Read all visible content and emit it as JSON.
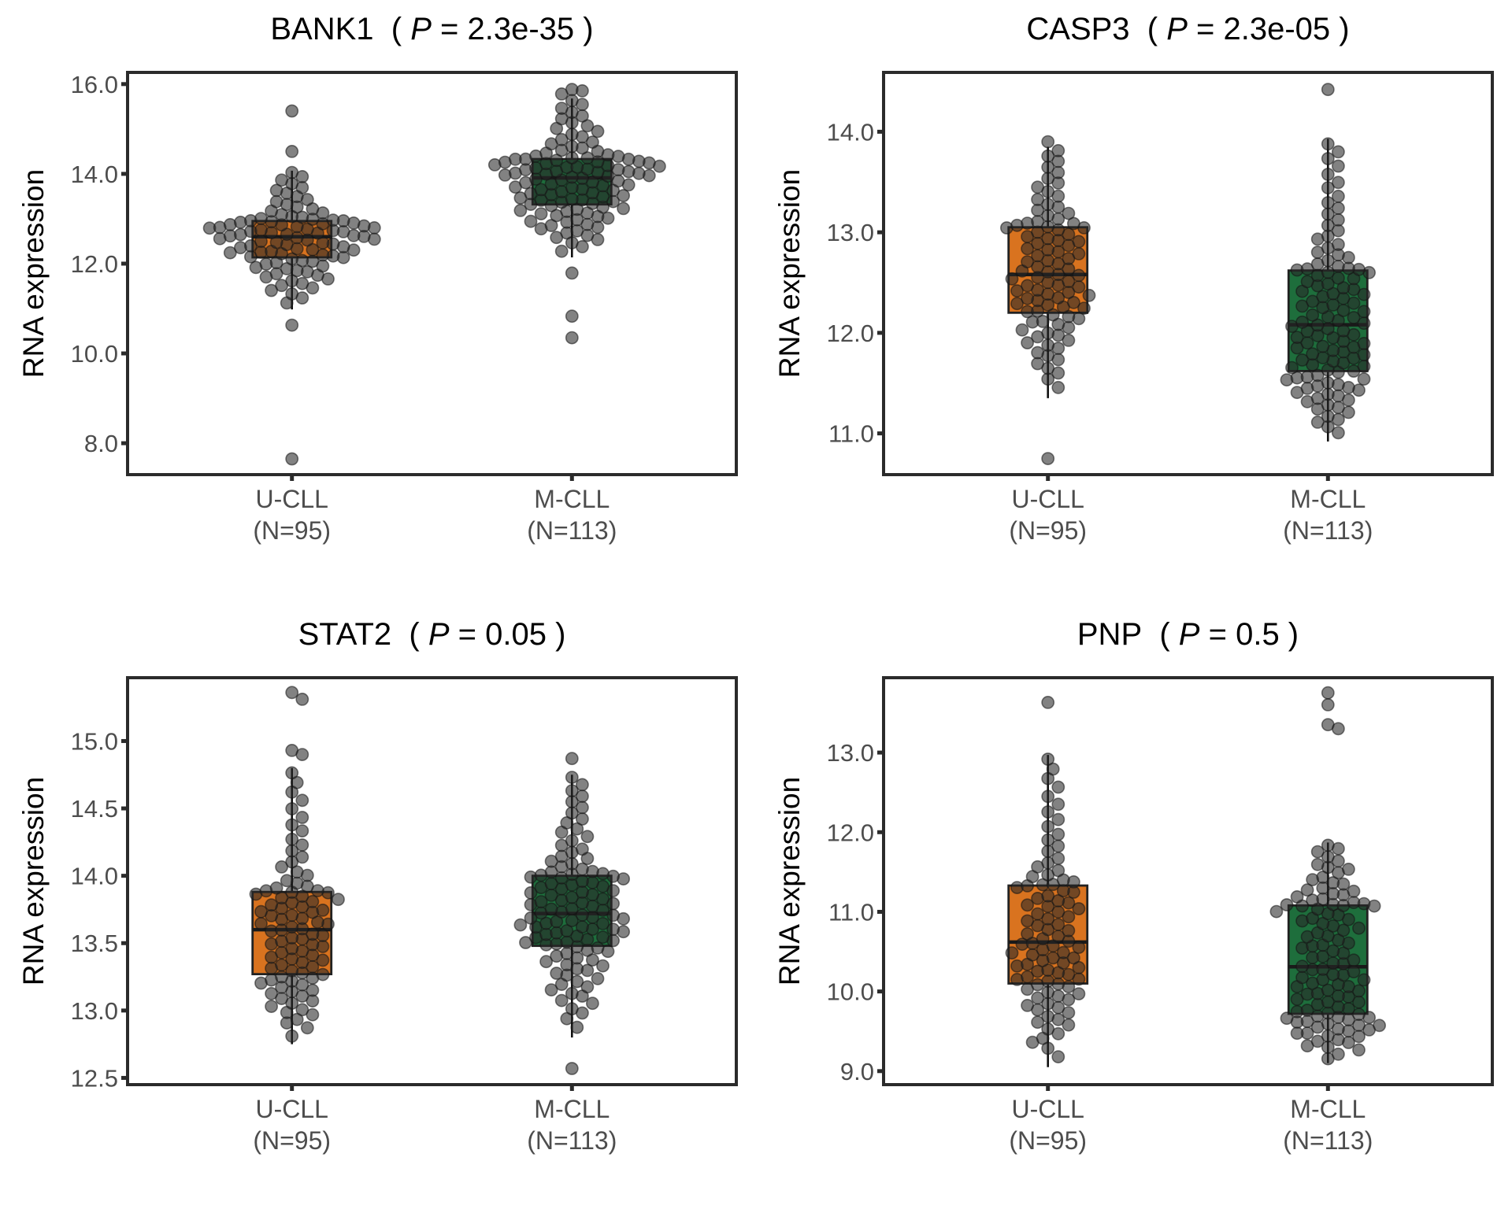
{
  "chart_data": [
    {
      "type": "box",
      "overlay": "beeswarm",
      "title": "BANK1",
      "p_label": "P",
      "p_value": "2.3e-35",
      "xlabel": "",
      "ylabel": "RNA expression",
      "ylim": [
        7.3,
        16.26
      ],
      "yticks": [
        8.0,
        10.0,
        12.0,
        14.0,
        16.0
      ],
      "ytick_labels": [
        "8.0",
        "10.0",
        "12.0",
        "14.0",
        "16.0"
      ],
      "grid": false,
      "categories": [
        {
          "name": "U-CLL",
          "n_label": "(N=95)",
          "n": 95,
          "color": "#d9731f",
          "q1": 12.14,
          "median": 12.6,
          "q3": 12.95,
          "whisker_low": 10.98,
          "whisker_high": 14.07,
          "outliers": [
            15.4,
            14.5,
            10.63,
            7.65
          ]
        },
        {
          "name": "M-CLL",
          "n_label": "(N=113)",
          "n": 113,
          "color": "#1e6e3c",
          "q1": 13.32,
          "median": 13.91,
          "q3": 14.33,
          "whisker_low": 12.14,
          "whisker_high": 15.68,
          "outliers": [
            15.88,
            15.85,
            15.78,
            11.79,
            10.83,
            10.35
          ]
        }
      ]
    },
    {
      "type": "box",
      "overlay": "beeswarm",
      "title": "CASP3",
      "p_label": "P",
      "p_value": "2.3e-05",
      "xlabel": "",
      "ylabel": "RNA expression",
      "ylim": [
        10.59,
        14.59
      ],
      "yticks": [
        11.0,
        12.0,
        13.0,
        14.0
      ],
      "ytick_labels": [
        "11.0",
        "12.0",
        "13.0",
        "14.0"
      ],
      "grid": false,
      "categories": [
        {
          "name": "U-CLL",
          "n_label": "(N=95)",
          "n": 95,
          "color": "#d9731f",
          "q1": 12.2,
          "median": 12.58,
          "q3": 13.05,
          "whisker_low": 11.35,
          "whisker_high": 13.85,
          "outliers": [
            13.9,
            10.75
          ]
        },
        {
          "name": "M-CLL",
          "n_label": "(N=113)",
          "n": 113,
          "color": "#1e6e3c",
          "q1": 11.62,
          "median": 12.08,
          "q3": 12.62,
          "whisker_low": 10.92,
          "whisker_high": 13.93,
          "outliers": [
            14.42
          ]
        }
      ]
    },
    {
      "type": "box",
      "overlay": "beeswarm",
      "title": "STAT2",
      "p_label": "P",
      "p_value": "0.05",
      "xlabel": "",
      "ylabel": "RNA expression",
      "ylim": [
        12.45,
        15.47
      ],
      "yticks": [
        12.5,
        13.0,
        13.5,
        14.0,
        14.5,
        15.0
      ],
      "ytick_labels": [
        "12.5",
        "13.0",
        "13.5",
        "14.0",
        "14.5",
        "15.0"
      ],
      "grid": false,
      "categories": [
        {
          "name": "U-CLL",
          "n_label": "(N=95)",
          "n": 95,
          "color": "#d9731f",
          "q1": 13.27,
          "median": 13.6,
          "q3": 13.88,
          "whisker_low": 12.75,
          "whisker_high": 14.8,
          "outliers": [
            15.36,
            15.31,
            14.93,
            14.9
          ]
        },
        {
          "name": "M-CLL",
          "n_label": "(N=113)",
          "n": 113,
          "color": "#1e6e3c",
          "q1": 13.48,
          "median": 13.72,
          "q3": 14.0,
          "whisker_low": 12.8,
          "whisker_high": 14.75,
          "outliers": [
            14.87,
            12.57
          ]
        }
      ]
    },
    {
      "type": "box",
      "overlay": "beeswarm",
      "title": "PNP",
      "p_label": "P",
      "p_value": "0.5",
      "xlabel": "",
      "ylabel": "RNA expression",
      "ylim": [
        8.83,
        13.94
      ],
      "yticks": [
        9.0,
        10.0,
        11.0,
        12.0,
        13.0
      ],
      "ytick_labels": [
        "9.0",
        "10.0",
        "11.0",
        "12.0",
        "13.0"
      ],
      "grid": false,
      "categories": [
        {
          "name": "U-CLL",
          "n_label": "(N=95)",
          "n": 95,
          "color": "#d9731f",
          "q1": 10.1,
          "median": 10.62,
          "q3": 11.33,
          "whisker_low": 9.05,
          "whisker_high": 12.97,
          "outliers": [
            13.63
          ]
        },
        {
          "name": "M-CLL",
          "n_label": "(N=113)",
          "n": 113,
          "color": "#1e6e3c",
          "q1": 9.72,
          "median": 10.31,
          "q3": 11.08,
          "whisker_low": 9.1,
          "whisker_high": 11.87,
          "outliers": [
            13.75,
            13.6,
            13.35,
            13.3
          ]
        }
      ]
    }
  ]
}
